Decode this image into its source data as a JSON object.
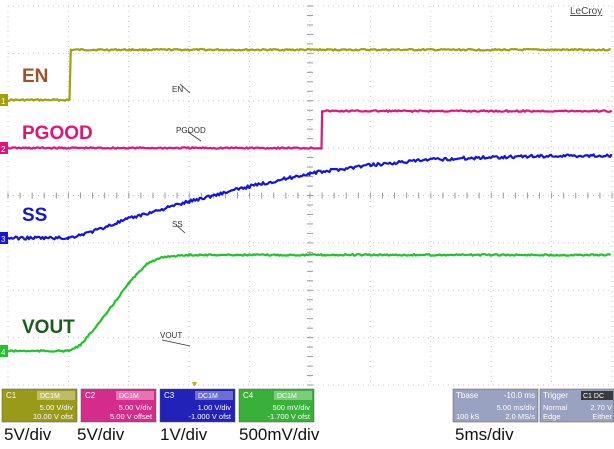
{
  "brand": "LeCroy",
  "chart_data": {
    "type": "line",
    "title": "",
    "xlabel": "",
    "ylabel": "",
    "grid": true,
    "x_divisions": 10,
    "y_divisions": 8,
    "x_unit": "ms",
    "series": [
      {
        "name": "EN",
        "channel": "C1",
        "color": "#a3a010",
        "label_color": "#a0522d",
        "trace_label": "EN",
        "marker": "1",
        "scale": "5V/div",
        "points": [
          [
            -10,
            0
          ],
          [
            -4.8,
            0
          ],
          [
            -4.8,
            5.4
          ],
          [
            40,
            5.4
          ]
        ]
      },
      {
        "name": "PGOOD",
        "channel": "C2",
        "color": "#e0157a",
        "label_color": "#e0157a",
        "trace_label": "PGOOD",
        "marker": "2",
        "scale": "5V/div",
        "points": [
          [
            -10,
            0
          ],
          [
            16,
            0
          ],
          [
            16,
            5.2
          ],
          [
            40,
            5.2
          ]
        ]
      },
      {
        "name": "SS",
        "channel": "C3",
        "color": "#1515d8",
        "label_color": "#1515d8",
        "trace_label": "SS",
        "marker": "3",
        "scale": "1V/div",
        "points": [
          [
            -10,
            0
          ],
          [
            -5,
            0
          ],
          [
            -3,
            0.15
          ],
          [
            0,
            0.45
          ],
          [
            5,
            0.85
          ],
          [
            10,
            1.2
          ],
          [
            15,
            1.5
          ],
          [
            20,
            1.7
          ],
          [
            25,
            1.82
          ],
          [
            30,
            1.88
          ],
          [
            35,
            1.91
          ],
          [
            40,
            1.92
          ]
        ]
      },
      {
        "name": "VOUT",
        "channel": "C4",
        "color": "#22c22a",
        "label_color": "#1a5c1a",
        "trace_label": "VOUT",
        "marker": "4",
        "scale": "500mV/div",
        "points": [
          [
            -10,
            0
          ],
          [
            -5,
            0
          ],
          [
            -4,
            0.1
          ],
          [
            -2,
            0.62
          ],
          [
            0,
            1.2
          ],
          [
            1.5,
            1.55
          ],
          [
            3,
            1.67
          ],
          [
            5,
            1.7
          ],
          [
            40,
            1.7
          ]
        ]
      }
    ]
  },
  "channel_info": [
    {
      "id": "C1",
      "coupling": "DC1M",
      "line1": "5.00 V/div",
      "line2": "10.00 V ofst",
      "bg": "#9a9a1a"
    },
    {
      "id": "C2",
      "coupling": "DC1M",
      "line1": "5.00 V/div",
      "line2": "5.00 V offset",
      "bg": "#d42c8a"
    },
    {
      "id": "C3",
      "coupling": "DC1M",
      "line1": "1.00 V/div",
      "line2": "-1.000 V ofst",
      "bg": "#2222bb"
    },
    {
      "id": "C4",
      "coupling": "DC1M",
      "line1": "500 mV/div",
      "line2": "-1.700 V ofst",
      "bg": "#39b039"
    }
  ],
  "timebase": {
    "label": "Tbase",
    "delay": "-10.0 ms",
    "per_div": "5.00 ms/div",
    "samples": "100 kS",
    "rate": "2.0 MS/s"
  },
  "trigger": {
    "label": "Trigger",
    "channel": "C1",
    "coupling": "DC",
    "mode": "Normal",
    "level": "2.70 V",
    "type": "Edge",
    "slope": "Either"
  },
  "footer": {
    "c1": "5V/div",
    "c2": "5V/div",
    "c3": "1V/div",
    "c4": "500mV/div",
    "time": "5ms/div"
  }
}
